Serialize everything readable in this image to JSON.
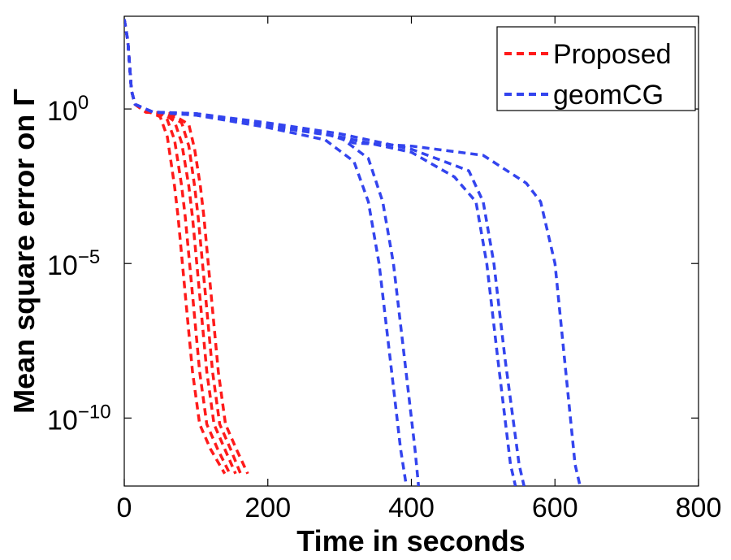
{
  "chart_data": {
    "type": "line",
    "title": "",
    "xlabel": "Time in seconds",
    "ylabel": "Mean square error on Γ",
    "xlim": [
      0,
      800
    ],
    "ylim_log10": [
      -12.2,
      3
    ],
    "yscale": "log",
    "x_ticks": [
      0,
      200,
      400,
      600,
      800
    ],
    "x_tick_labels": [
      "0",
      "200",
      "400",
      "600",
      "800"
    ],
    "y_ticks_exponent": [
      0,
      -5,
      -10
    ],
    "y_tick_base": "10",
    "y_tick_exponents": [
      "0",
      "−5",
      "−10"
    ],
    "legend": {
      "placement": "top-right",
      "entries": [
        "Proposed",
        "geomCG"
      ]
    },
    "colors": {
      "Proposed": "#ff1a1a",
      "geomCG": "#3344ee"
    },
    "series": [
      {
        "name": "Proposed",
        "color": "#ff1a1a",
        "points": [
          [
            0,
            2.9
          ],
          [
            5,
            2.2
          ],
          [
            10,
            0.6
          ],
          [
            15,
            0.15
          ],
          [
            25,
            0.05
          ],
          [
            40,
            -0.15
          ],
          [
            50,
            -0.25
          ],
          [
            60,
            -0.9
          ],
          [
            70,
            -2.5
          ],
          [
            75,
            -3.5
          ],
          [
            85,
            -6
          ],
          [
            95,
            -8.5
          ],
          [
            105,
            -10.2
          ],
          [
            120,
            -11
          ],
          [
            140,
            -11.8
          ]
        ]
      },
      {
        "name": "Proposed",
        "color": "#ff1a1a",
        "points": [
          [
            0,
            2.9
          ],
          [
            5,
            2.2
          ],
          [
            10,
            0.6
          ],
          [
            15,
            0.15
          ],
          [
            30,
            -0.1
          ],
          [
            50,
            -0.15
          ],
          [
            60,
            -0.35
          ],
          [
            70,
            -1.0
          ],
          [
            80,
            -2.5
          ],
          [
            85,
            -3.5
          ],
          [
            95,
            -6
          ],
          [
            105,
            -8.5
          ],
          [
            115,
            -10.2
          ],
          [
            130,
            -11
          ],
          [
            147,
            -11.8
          ]
        ]
      },
      {
        "name": "Proposed",
        "color": "#ff1a1a",
        "points": [
          [
            0,
            2.9
          ],
          [
            5,
            2.2
          ],
          [
            10,
            0.6
          ],
          [
            15,
            0.15
          ],
          [
            30,
            -0.1
          ],
          [
            55,
            -0.15
          ],
          [
            70,
            -0.4
          ],
          [
            80,
            -1.1
          ],
          [
            90,
            -2.5
          ],
          [
            95,
            -3.5
          ],
          [
            105,
            -6
          ],
          [
            115,
            -8.5
          ],
          [
            125,
            -10.2
          ],
          [
            140,
            -11
          ],
          [
            155,
            -11.8
          ]
        ]
      },
      {
        "name": "Proposed",
        "color": "#ff1a1a",
        "points": [
          [
            0,
            2.9
          ],
          [
            5,
            2.2
          ],
          [
            10,
            0.6
          ],
          [
            15,
            0.15
          ],
          [
            30,
            -0.1
          ],
          [
            60,
            -0.15
          ],
          [
            80,
            -0.45
          ],
          [
            90,
            -1.2
          ],
          [
            98,
            -2.5
          ],
          [
            103,
            -3.5
          ],
          [
            113,
            -6
          ],
          [
            123,
            -8.5
          ],
          [
            133,
            -10.2
          ],
          [
            148,
            -11
          ],
          [
            162,
            -11.8
          ]
        ]
      },
      {
        "name": "Proposed",
        "color": "#ff1a1a",
        "points": [
          [
            0,
            2.9
          ],
          [
            5,
            2.2
          ],
          [
            10,
            0.6
          ],
          [
            15,
            0.15
          ],
          [
            30,
            -0.1
          ],
          [
            65,
            -0.15
          ],
          [
            90,
            -0.5
          ],
          [
            98,
            -1.3
          ],
          [
            106,
            -2.5
          ],
          [
            111,
            -3.5
          ],
          [
            121,
            -6
          ],
          [
            131,
            -8.5
          ],
          [
            141,
            -10.2
          ],
          [
            156,
            -11
          ],
          [
            172,
            -11.8
          ]
        ]
      },
      {
        "name": "geomCG",
        "color": "#3344ee",
        "points": [
          [
            0,
            2.9
          ],
          [
            5,
            2.2
          ],
          [
            10,
            0.6
          ],
          [
            15,
            0.15
          ],
          [
            40,
            -0.1
          ],
          [
            100,
            -0.2
          ],
          [
            200,
            -0.6
          ],
          [
            280,
            -1.0
          ],
          [
            320,
            -1.7
          ],
          [
            340,
            -3
          ],
          [
            355,
            -5
          ],
          [
            370,
            -8
          ],
          [
            385,
            -11
          ],
          [
            393,
            -12.2
          ]
        ]
      },
      {
        "name": "geomCG",
        "color": "#3344ee",
        "points": [
          [
            0,
            2.9
          ],
          [
            5,
            2.2
          ],
          [
            10,
            0.6
          ],
          [
            15,
            0.15
          ],
          [
            40,
            -0.1
          ],
          [
            100,
            -0.15
          ],
          [
            200,
            -0.5
          ],
          [
            300,
            -0.9
          ],
          [
            340,
            -1.6
          ],
          [
            360,
            -3
          ],
          [
            375,
            -5
          ],
          [
            390,
            -8
          ],
          [
            405,
            -11
          ],
          [
            410,
            -12.2
          ]
        ]
      },
      {
        "name": "geomCG",
        "color": "#3344ee",
        "points": [
          [
            0,
            2.9
          ],
          [
            5,
            2.2
          ],
          [
            10,
            0.6
          ],
          [
            15,
            0.15
          ],
          [
            40,
            -0.1
          ],
          [
            100,
            -0.2
          ],
          [
            200,
            -0.55
          ],
          [
            300,
            -0.9
          ],
          [
            400,
            -1.4
          ],
          [
            460,
            -2.2
          ],
          [
            490,
            -3
          ],
          [
            505,
            -5
          ],
          [
            520,
            -8
          ],
          [
            538,
            -11.5
          ],
          [
            545,
            -12.2
          ]
        ]
      },
      {
        "name": "geomCG",
        "color": "#3344ee",
        "points": [
          [
            0,
            2.9
          ],
          [
            5,
            2.2
          ],
          [
            10,
            0.6
          ],
          [
            15,
            0.15
          ],
          [
            40,
            -0.1
          ],
          [
            100,
            -0.15
          ],
          [
            200,
            -0.45
          ],
          [
            300,
            -0.8
          ],
          [
            400,
            -1.3
          ],
          [
            480,
            -2.0
          ],
          [
            500,
            -3
          ],
          [
            515,
            -5
          ],
          [
            530,
            -8
          ],
          [
            550,
            -11.5
          ],
          [
            557,
            -12.2
          ]
        ]
      },
      {
        "name": "geomCG",
        "color": "#3344ee",
        "points": [
          [
            0,
            2.9
          ],
          [
            5,
            2.2
          ],
          [
            10,
            0.6
          ],
          [
            15,
            0.15
          ],
          [
            40,
            -0.1
          ],
          [
            100,
            -0.15
          ],
          [
            200,
            -0.5
          ],
          [
            280,
            -0.8
          ],
          [
            320,
            -1.1
          ],
          [
            400,
            -1.2
          ],
          [
            500,
            -1.5
          ],
          [
            560,
            -2.4
          ],
          [
            580,
            -3
          ],
          [
            600,
            -5
          ],
          [
            613,
            -8
          ],
          [
            628,
            -11.5
          ],
          [
            635,
            -12.2
          ]
        ]
      }
    ]
  }
}
